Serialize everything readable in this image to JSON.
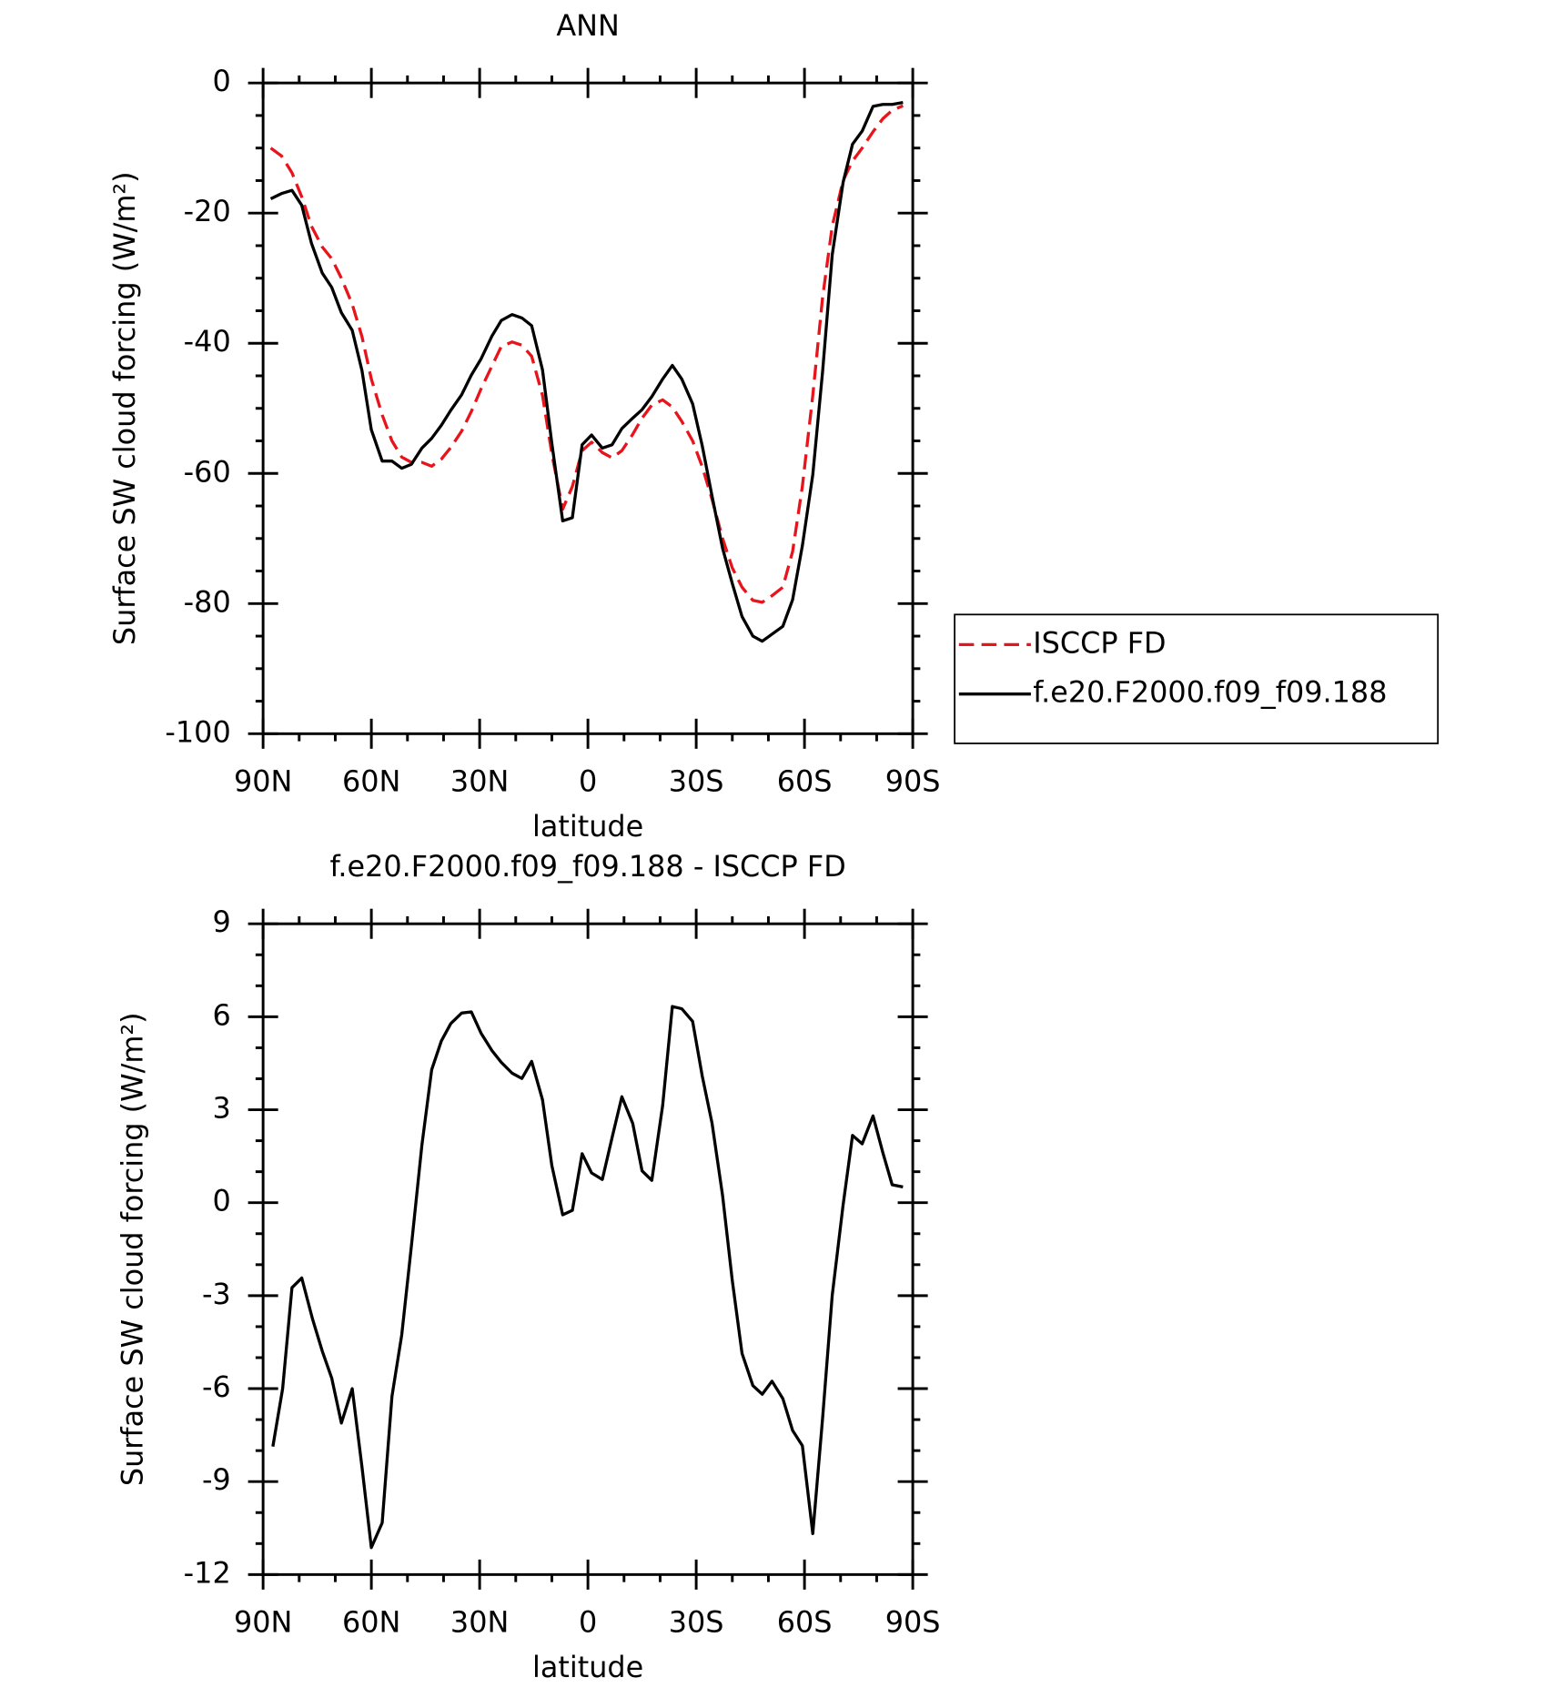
{
  "chart_data": [
    {
      "type": "line",
      "title": "ANN",
      "x_label": "latitude",
      "y_label": "Surface SW cloud forcing (W/m²)",
      "x": [
        87.9,
        84.9,
        82,
        79.3,
        76.6,
        73.6,
        71,
        68.3,
        65.3,
        62.6,
        60,
        57,
        54.3,
        51.6,
        48.9,
        46,
        43.3,
        40.6,
        38,
        35,
        32.3,
        29.6,
        26.6,
        24,
        21,
        18.3,
        15.6,
        12.6,
        10,
        7,
        4.3,
        1.6,
        -1,
        -4,
        -6.7,
        -9.4,
        -12.4,
        -15,
        -17.7,
        -20.7,
        -23.4,
        -26,
        -29,
        -31.7,
        -34.4,
        -37.3,
        -40,
        -42.7,
        -45.7,
        -48.3,
        -51,
        -54,
        -56.7,
        -59.4,
        -62.3,
        -65,
        -67.7,
        -70.7,
        -73.3,
        -76,
        -79,
        -81.7,
        -84.3,
        -87.3
      ],
      "series": [
        {
          "name": "ISCCP FD",
          "color": "#e8141b",
          "linestyle": "dashed",
          "values": [
            -10,
            -11.2,
            -13.8,
            -17.5,
            -22,
            -25.2,
            -27,
            -30,
            -34,
            -39,
            -45.5,
            -51,
            -55,
            -57.5,
            -58.3,
            -58.3,
            -58.9,
            -57.8,
            -56,
            -53.5,
            -50.5,
            -47,
            -43.5,
            -40.5,
            -39.8,
            -40.3,
            -42,
            -48,
            -57,
            -65.5,
            -62,
            -56.5,
            -55.2,
            -56.8,
            -57.6,
            -56.5,
            -54,
            -51.5,
            -49.5,
            -48.7,
            -49.8,
            -52,
            -55,
            -59,
            -64,
            -70,
            -74.5,
            -77.5,
            -79.5,
            -79.8,
            -78.8,
            -77.5,
            -72,
            -62,
            -48,
            -33,
            -22,
            -15,
            -12,
            -10,
            -7.5,
            -5.5,
            -4.2,
            -3.5
          ]
        },
        {
          "name": "f.e20.F2000.f09_f09.188",
          "color": "#000000",
          "linestyle": "solid",
          "values": [
            -17.8,
            -17,
            -16.5,
            -18.8,
            -24.6,
            -29.2,
            -31.4,
            -35.3,
            -38,
            -44.2,
            -53.3,
            -58.1,
            -58.1,
            -59.2,
            -58.6,
            -56.1,
            -54.6,
            -52.6,
            -50.3,
            -47.9,
            -44.9,
            -42.4,
            -38.9,
            -36.5,
            -35.6,
            -36.1,
            -37.3,
            -44.1,
            -55.4,
            -67.3,
            -66.8,
            -55.6,
            -54.1,
            -56.1,
            -55.6,
            -53.1,
            -51.5,
            -50.2,
            -48.2,
            -45.5,
            -43.4,
            -45.5,
            -49.3,
            -55.8,
            -63.5,
            -71.5,
            -76.9,
            -82,
            -85,
            -85.8,
            -84.7,
            -83.5,
            -79.4,
            -71.1,
            -60.2,
            -44.4,
            -26.4,
            -15.3,
            -9.4,
            -7.4,
            -3.6,
            -3.3,
            -3.3,
            -3
          ]
        }
      ],
      "xlim": [
        90,
        -90
      ],
      "xticks": [
        {
          "value": 90,
          "label": "90N"
        },
        {
          "value": 60,
          "label": "60N"
        },
        {
          "value": 30,
          "label": "30N"
        },
        0,
        {
          "value": -30,
          "label": "30S"
        },
        {
          "value": -60,
          "label": "60S"
        },
        {
          "value": -90,
          "label": "90S"
        }
      ],
      "xminorticks": [
        80,
        70,
        50,
        40,
        20,
        10,
        -10,
        -20,
        -40,
        -50,
        -70,
        -80
      ],
      "ylim": [
        -100,
        0
      ],
      "yticks": [
        0,
        -20,
        -40,
        -60,
        -80,
        -100
      ],
      "yminorticks": [
        -5,
        -10,
        -15,
        -25,
        -30,
        -35,
        -45,
        -50,
        -55,
        -65,
        -70,
        -75,
        -85,
        -90,
        -95
      ],
      "legend": "right"
    },
    {
      "type": "line",
      "title": "f.e20.F2000.f09_f09.188 - ISCCP FD",
      "x_label": "latitude",
      "y_label": "Surface SW cloud forcing (W/m²)",
      "x": [
        87.3,
        84.6,
        82,
        79.3,
        76.3,
        73.6,
        71,
        68.3,
        65.3,
        62.6,
        60,
        57,
        54.3,
        51.6,
        48.9,
        46,
        43.3,
        40.6,
        38,
        35,
        32.3,
        29.6,
        26.6,
        24,
        21,
        18.3,
        15.6,
        12.6,
        10,
        7,
        4.3,
        1.6,
        -1,
        -4,
        -6.7,
        -9.4,
        -12.4,
        -15,
        -17.7,
        -20.7,
        -23.4,
        -26,
        -29,
        -31.7,
        -34.4,
        -37.3,
        -40,
        -42.7,
        -45.7,
        -48.3,
        -51,
        -54,
        -56.7,
        -59.4,
        -62.3,
        -65,
        -67.7,
        -70.7,
        -73.3,
        -76,
        -79,
        -81.7,
        -84.3,
        -87.3
      ],
      "color": "#000000",
      "values": [
        -7.87,
        -6.0,
        -2.74,
        -2.43,
        -3.75,
        -4.79,
        -5.66,
        -7.11,
        -6.0,
        -8.53,
        -11.13,
        -10.33,
        -6.25,
        -4.27,
        -1.4,
        1.86,
        4.29,
        5.22,
        5.78,
        6.12,
        6.16,
        5.47,
        4.91,
        4.53,
        4.18,
        4.01,
        4.56,
        3.32,
        1.2,
        -0.39,
        -0.25,
        1.58,
        0.96,
        0.75,
        2.1,
        3.42,
        2.56,
        1.03,
        0.72,
        3.14,
        6.33,
        6.26,
        5.85,
        4.08,
        2.56,
        0.23,
        -2.5,
        -4.86,
        -5.9,
        -6.18,
        -5.76,
        -6.32,
        -7.35,
        -7.84,
        -10.68,
        -6.97,
        -2.99,
        -0.08,
        2.17,
        1.9,
        2.8,
        1.62,
        0.58,
        0.51
      ],
      "xlim": [
        90,
        -90
      ],
      "xticks": [
        {
          "value": 90,
          "label": "90N"
        },
        {
          "value": 60,
          "label": "60N"
        },
        {
          "value": 30,
          "label": "30N"
        },
        0,
        {
          "value": -30,
          "label": "30S"
        },
        {
          "value": -60,
          "label": "60S"
        },
        {
          "value": -90,
          "label": "90S"
        }
      ],
      "xminorticks": [
        80,
        70,
        50,
        40,
        20,
        10,
        -10,
        -20,
        -40,
        -50,
        -70,
        -80
      ],
      "ylim": [
        -12,
        9
      ],
      "yticks": [
        9,
        6,
        3,
        0,
        -3,
        -6,
        -9,
        -12
      ],
      "yminorticks": [
        8,
        7,
        5,
        4,
        2,
        1,
        -1,
        -2,
        -4,
        -5,
        -7,
        -8,
        -10,
        -11
      ]
    }
  ]
}
